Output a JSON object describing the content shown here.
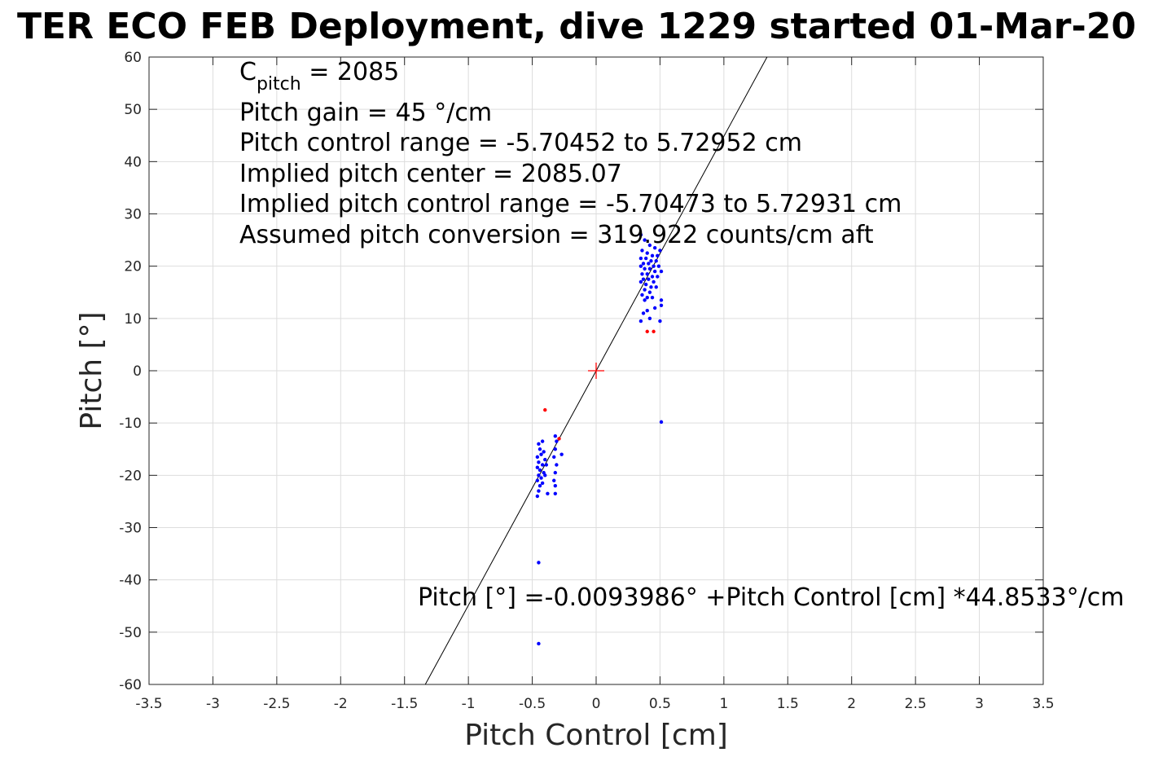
{
  "chart_data": {
    "type": "scatter",
    "title": "TER ECO FEB Deployment, dive 1229 started 01-Mar-20",
    "xlabel": "Pitch Control [cm]",
    "ylabel": "Pitch [°]",
    "xlim": [
      -3.5,
      3.5
    ],
    "ylim": [
      -60,
      60
    ],
    "xticks": [
      -3.5,
      -3,
      -2.5,
      -2,
      -1.5,
      -1,
      -0.5,
      0,
      0.5,
      1,
      1.5,
      2,
      2.5,
      3,
      3.5
    ],
    "xtick_labels": [
      "-3.5",
      "-3",
      "-2.5",
      "-2",
      "-1.5",
      "-1",
      "-0.5",
      "0",
      "0.5",
      "1",
      "1.5",
      "2",
      "2.5",
      "3",
      "3.5"
    ],
    "yticks": [
      60,
      50,
      40,
      30,
      20,
      10,
      0,
      -10,
      -20,
      -30,
      -40,
      -50,
      -60
    ],
    "ytick_labels": [
      "60",
      "50",
      "40",
      "30",
      "20",
      "10",
      "0",
      "-10",
      "-20",
      "-30",
      "-40",
      "-50",
      "-60"
    ],
    "grid": true,
    "annotations": {
      "c_pitch_main": "C",
      "c_pitch_sub": "pitch",
      "c_pitch_value": " = 2085",
      "gain": "Pitch gain = 45 °/cm",
      "control_range": "Pitch control range = -5.70452 to 5.72952 cm",
      "implied_center": "Implied pitch center = 2085.07",
      "implied_range": "Implied pitch control range = -5.70473 to 5.72931 cm",
      "conversion": "Assumed pitch conversion = 319.922 counts/cm aft",
      "fit_equation": "Pitch [°] =-0.0093986° +Pitch Control [cm] *44.8533°/cm"
    },
    "fit_line": {
      "intercept": -0.0093986,
      "slope": 44.8533
    },
    "center_marker": {
      "x": 0,
      "y": 0
    },
    "series": [
      {
        "color": "#0000ff",
        "marker": "dot",
        "points": [
          [
            0.35,
            26
          ],
          [
            0.38,
            25
          ],
          [
            0.42,
            24
          ],
          [
            0.46,
            23.5
          ],
          [
            0.5,
            23
          ],
          [
            0.36,
            23
          ],
          [
            0.4,
            22.5
          ],
          [
            0.44,
            22
          ],
          [
            0.48,
            22
          ],
          [
            0.35,
            21.5
          ],
          [
            0.39,
            21.5
          ],
          [
            0.43,
            21
          ],
          [
            0.47,
            21
          ],
          [
            0.37,
            20.5
          ],
          [
            0.41,
            20.5
          ],
          [
            0.45,
            20
          ],
          [
            0.49,
            20
          ],
          [
            0.35,
            20
          ],
          [
            0.38,
            19.5
          ],
          [
            0.42,
            19.5
          ],
          [
            0.46,
            19
          ],
          [
            0.51,
            19
          ],
          [
            0.36,
            18.5
          ],
          [
            0.4,
            18.5
          ],
          [
            0.44,
            18
          ],
          [
            0.48,
            18
          ],
          [
            0.37,
            17.5
          ],
          [
            0.41,
            17.5
          ],
          [
            0.45,
            17
          ],
          [
            0.35,
            17
          ],
          [
            0.39,
            16.5
          ],
          [
            0.43,
            16
          ],
          [
            0.47,
            16
          ],
          [
            0.38,
            15.5
          ],
          [
            0.42,
            15
          ],
          [
            0.36,
            14.5
          ],
          [
            0.4,
            14
          ],
          [
            0.44,
            14
          ],
          [
            0.38,
            13.5
          ],
          [
            0.51,
            13.5
          ],
          [
            0.51,
            12.5
          ],
          [
            0.46,
            12
          ],
          [
            0.4,
            11.5
          ],
          [
            0.37,
            11
          ],
          [
            0.5,
            9.5
          ],
          [
            0.35,
            9.5
          ],
          [
            0.42,
            10
          ],
          [
            0.51,
            -9.8
          ],
          [
            -0.45,
            -14
          ],
          [
            -0.42,
            -13.5
          ],
          [
            -0.44,
            -15
          ],
          [
            -0.41,
            -15.5
          ],
          [
            -0.46,
            -16.5
          ],
          [
            -0.43,
            -16
          ],
          [
            -0.4,
            -17
          ],
          [
            -0.45,
            -17.5
          ],
          [
            -0.42,
            -18
          ],
          [
            -0.46,
            -18.5
          ],
          [
            -0.44,
            -19
          ],
          [
            -0.41,
            -19.5
          ],
          [
            -0.45,
            -20
          ],
          [
            -0.43,
            -20.5
          ],
          [
            -0.46,
            -21
          ],
          [
            -0.42,
            -21.5
          ],
          [
            -0.44,
            -22
          ],
          [
            -0.45,
            -23
          ],
          [
            -0.46,
            -24
          ],
          [
            -0.32,
            -12.5
          ],
          [
            -0.31,
            -13.5
          ],
          [
            -0.32,
            -15
          ],
          [
            -0.33,
            -16.5
          ],
          [
            -0.31,
            -18
          ],
          [
            -0.32,
            -19.5
          ],
          [
            -0.33,
            -21
          ],
          [
            -0.32,
            -22
          ],
          [
            -0.32,
            -23.5
          ],
          [
            -0.27,
            -16
          ],
          [
            -0.38,
            -23.5
          ],
          [
            -0.4,
            -20
          ],
          [
            -0.39,
            -18
          ],
          [
            -0.45,
            -36.7
          ],
          [
            -0.45,
            -52.2
          ]
        ]
      },
      {
        "color": "#ff0000",
        "marker": "dot",
        "points": [
          [
            0.4,
            7.5
          ],
          [
            0.45,
            7.5
          ],
          [
            -0.4,
            -7.5
          ],
          [
            -0.29,
            -13
          ]
        ]
      }
    ]
  }
}
